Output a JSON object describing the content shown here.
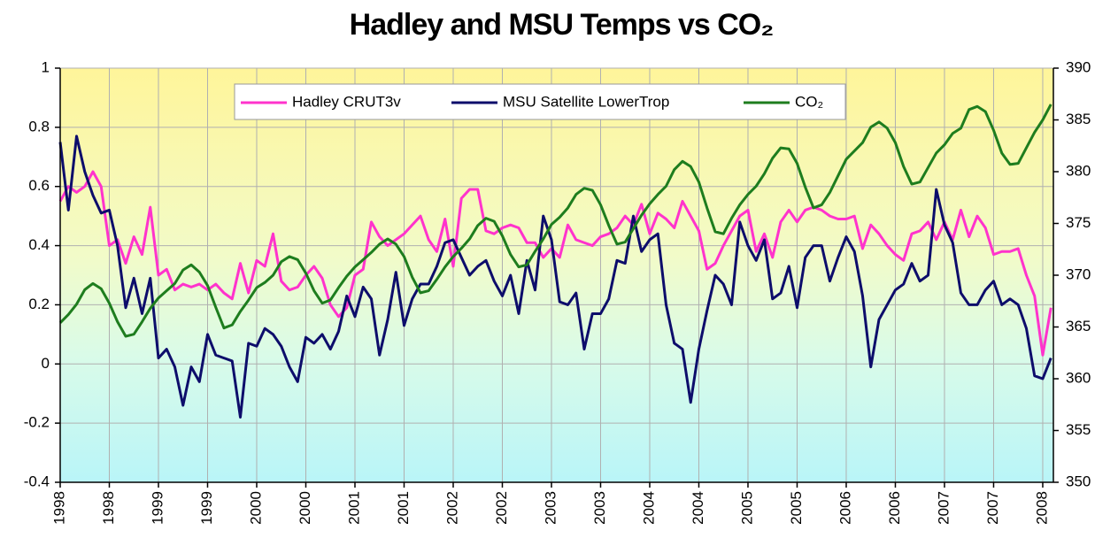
{
  "chart_data": {
    "type": "line",
    "title": "Hadley and MSU Temps vs CO₂",
    "categories": [
      "1998",
      null,
      null,
      null,
      null,
      null,
      "1998",
      null,
      null,
      null,
      null,
      null,
      "1999",
      null,
      null,
      null,
      null,
      null,
      "1999",
      null,
      null,
      null,
      null,
      null,
      "2000",
      null,
      null,
      null,
      null,
      null,
      "2000",
      null,
      null,
      null,
      null,
      null,
      "2001",
      null,
      null,
      null,
      null,
      null,
      "2001",
      null,
      null,
      null,
      null,
      null,
      "2002",
      null,
      null,
      null,
      null,
      null,
      "2002",
      null,
      null,
      null,
      null,
      null,
      "2003",
      null,
      null,
      null,
      null,
      null,
      "2003",
      null,
      null,
      null,
      null,
      null,
      "2004",
      null,
      null,
      null,
      null,
      null,
      "2004",
      null,
      null,
      null,
      null,
      null,
      "2005",
      null,
      null,
      null,
      null,
      null,
      "2005",
      null,
      null,
      null,
      null,
      null,
      "2006",
      null,
      null,
      null,
      null,
      null,
      "2006",
      null,
      null,
      null,
      null,
      null,
      "2007",
      null,
      null,
      null,
      null,
      null,
      "2007",
      null,
      null,
      null,
      null,
      null,
      "2008",
      null
    ],
    "series": [
      {
        "name": "Hadley CRUT3v",
        "color": "#ff33cc",
        "values": [
          0.55,
          0.6,
          0.58,
          0.6,
          0.65,
          0.6,
          0.4,
          0.42,
          0.34,
          0.43,
          0.37,
          0.53,
          0.3,
          0.32,
          0.25,
          0.27,
          0.26,
          0.27,
          0.25,
          0.27,
          0.24,
          0.22,
          0.34,
          0.24,
          0.35,
          0.33,
          0.44,
          0.28,
          0.25,
          0.26,
          0.3,
          0.33,
          0.29,
          0.2,
          0.16,
          0.19,
          0.3,
          0.32,
          0.48,
          0.43,
          0.4,
          0.42,
          0.44,
          0.47,
          0.5,
          0.42,
          0.38,
          0.49,
          0.33,
          0.56,
          0.59,
          0.59,
          0.45,
          0.44,
          0.46,
          0.47,
          0.46,
          0.41,
          0.41,
          0.36,
          0.39,
          0.36,
          0.47,
          0.42,
          0.41,
          0.4,
          0.43,
          0.44,
          0.46,
          0.5,
          0.47,
          0.54,
          0.44,
          0.51,
          0.49,
          0.46,
          0.55,
          0.5,
          0.45,
          0.32,
          0.34,
          0.4,
          0.45,
          0.5,
          0.52,
          0.38,
          0.44,
          0.36,
          0.48,
          0.52,
          0.48,
          0.52,
          0.53,
          0.52,
          0.5,
          0.49,
          0.49,
          0.5,
          0.39,
          0.47,
          0.44,
          0.4,
          0.37,
          0.35,
          0.44,
          0.45,
          0.48,
          0.42,
          0.48,
          0.42,
          0.52,
          0.43,
          0.5,
          0.46,
          0.37,
          0.38,
          0.38,
          0.39,
          0.3,
          0.23,
          0.03,
          0.19
        ]
      },
      {
        "name": "MSU Satellite LowerTrop",
        "color": "#0d0d6b",
        "values": [
          0.75,
          0.52,
          0.77,
          0.65,
          0.57,
          0.51,
          0.52,
          0.4,
          0.19,
          0.29,
          0.17,
          0.29,
          0.02,
          0.05,
          -0.01,
          -0.14,
          -0.01,
          -0.06,
          0.1,
          0.03,
          0.02,
          0.01,
          -0.18,
          0.07,
          0.06,
          0.12,
          0.1,
          0.06,
          -0.01,
          -0.06,
          0.09,
          0.07,
          0.1,
          0.05,
          0.11,
          0.23,
          0.16,
          0.26,
          0.22,
          0.03,
          0.15,
          0.31,
          0.13,
          0.22,
          0.27,
          0.27,
          0.33,
          0.41,
          0.42,
          0.36,
          0.3,
          0.33,
          0.35,
          0.28,
          0.23,
          0.3,
          0.17,
          0.35,
          0.25,
          0.5,
          0.42,
          0.21,
          0.2,
          0.24,
          0.05,
          0.17,
          0.17,
          0.22,
          0.35,
          0.34,
          0.5,
          0.38,
          0.42,
          0.44,
          0.2,
          0.07,
          0.05,
          -0.13,
          0.05,
          0.18,
          0.3,
          0.27,
          0.2,
          0.48,
          0.4,
          0.35,
          0.42,
          0.22,
          0.24,
          0.33,
          0.19,
          0.36,
          0.4,
          0.4,
          0.28,
          0.36,
          0.43,
          0.38,
          0.23,
          -0.01,
          0.15,
          0.2,
          0.25,
          0.27,
          0.34,
          0.28,
          0.3,
          0.59,
          0.47,
          0.41,
          0.24,
          0.2,
          0.2,
          0.25,
          0.28,
          0.2,
          0.22,
          0.2,
          0.12,
          -0.04,
          -0.05,
          0.02
        ]
      },
      {
        "name": "CO₂",
        "color": "#1e7d1e",
        "axis": "y2",
        "values": [
          365.4,
          366.2,
          367.2,
          368.6,
          369.2,
          368.7,
          367.3,
          365.5,
          364.1,
          364.3,
          365.5,
          366.8,
          367.8,
          368.5,
          369.2,
          370.5,
          371.0,
          370.3,
          369.0,
          366.9,
          364.9,
          365.2,
          366.5,
          367.6,
          368.8,
          369.3,
          370.0,
          371.3,
          371.8,
          371.5,
          370.2,
          368.5,
          367.3,
          367.6,
          368.8,
          369.9,
          370.8,
          371.5,
          372.2,
          373.0,
          373.5,
          373.0,
          371.8,
          369.8,
          368.3,
          368.5,
          369.6,
          370.8,
          371.8,
          372.6,
          373.5,
          374.8,
          375.5,
          375.2,
          373.8,
          372.0,
          370.8,
          371.0,
          372.3,
          373.5,
          374.9,
          375.6,
          376.5,
          377.8,
          378.4,
          378.2,
          376.8,
          374.8,
          373.0,
          373.2,
          374.5,
          375.8,
          376.9,
          377.8,
          378.6,
          380.2,
          381.0,
          380.5,
          379.0,
          376.5,
          374.2,
          374.0,
          375.5,
          376.8,
          377.8,
          378.6,
          379.8,
          381.3,
          382.3,
          382.2,
          380.8,
          378.5,
          376.5,
          376.8,
          378.0,
          379.6,
          381.2,
          382.0,
          382.8,
          384.3,
          384.8,
          384.2,
          382.8,
          380.5,
          378.8,
          379.0,
          380.4,
          381.8,
          382.6,
          383.7,
          384.2,
          386.0,
          386.3,
          385.8,
          384.0,
          381.8,
          380.7,
          380.8,
          382.3,
          383.8,
          385.0,
          386.5
        ]
      }
    ],
    "ylim": [
      -0.4,
      1
    ],
    "yticks": [
      -0.4,
      -0.2,
      0,
      0.2,
      0.4,
      0.6,
      0.8,
      1
    ],
    "y2lim": [
      350,
      390
    ],
    "y2ticks": [
      350,
      355,
      360,
      365,
      370,
      375,
      380,
      385,
      390
    ],
    "grid": true,
    "legend": "top"
  }
}
